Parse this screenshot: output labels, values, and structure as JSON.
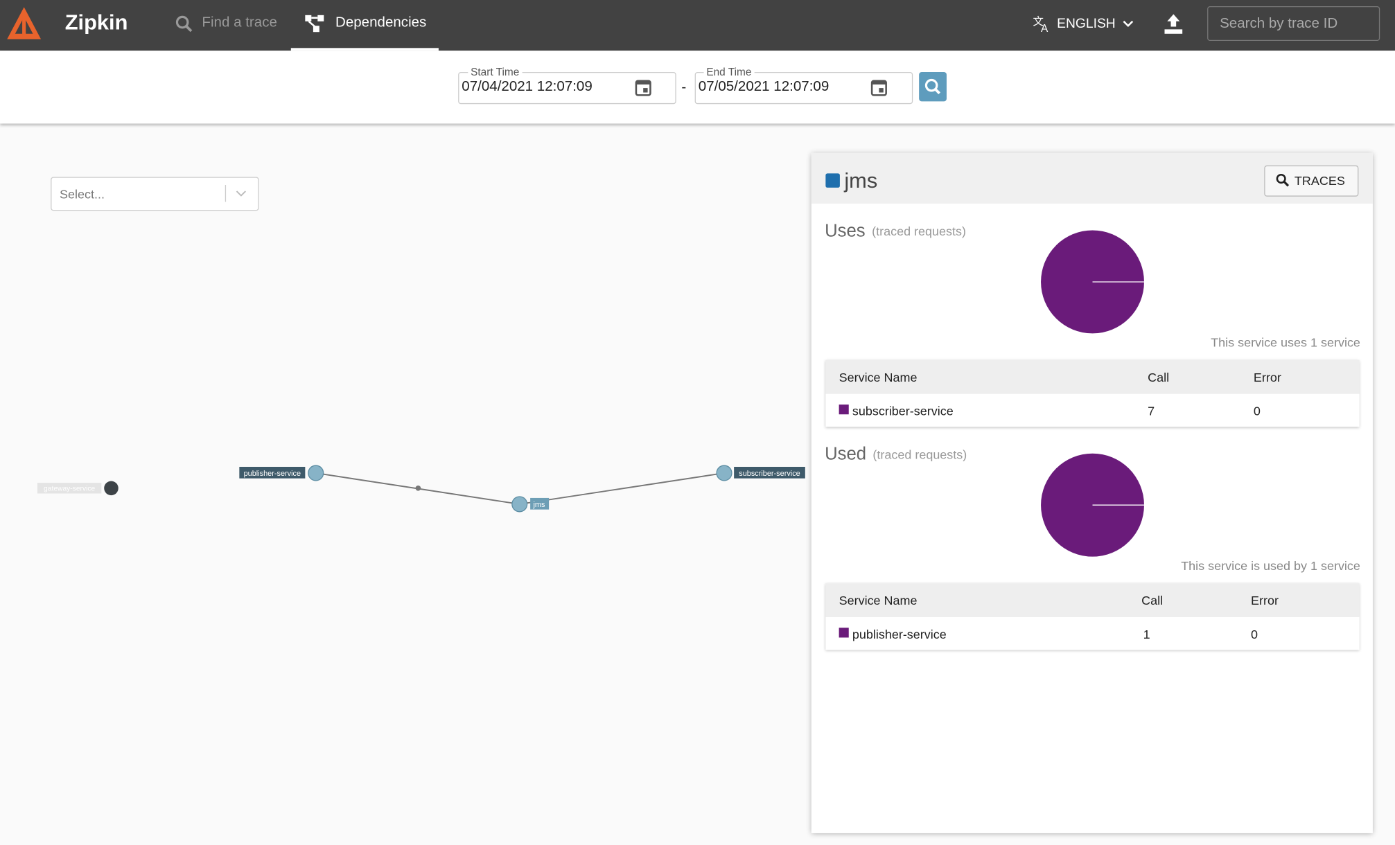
{
  "header": {
    "brand": "Zipkin",
    "nav": [
      "Find a trace",
      "Dependencies"
    ],
    "language": "ENGLISH",
    "search_placeholder": "Search by trace ID"
  },
  "filters": {
    "start_label": "Start Time",
    "start_value": "07/04/2021 12:07:09",
    "separator": "-",
    "end_label": "End Time",
    "end_value": "07/05/2021 12:07:09"
  },
  "graph": {
    "select_placeholder": "Select...",
    "nodes": [
      "gateway-service",
      "publisher-service",
      "jms",
      "subscriber-service"
    ]
  },
  "panel": {
    "service": "jms",
    "traces_button": "TRACES",
    "uses": {
      "title": "Uses",
      "subtitle": "(traced requests)",
      "summary": "This service uses 1 service",
      "columns": [
        "Service Name",
        "Call",
        "Error"
      ],
      "rows": [
        [
          "subscriber-service",
          7,
          0
        ]
      ]
    },
    "used": {
      "title": "Used",
      "subtitle": "(traced requests)",
      "summary": "This service is used by 1 service",
      "columns": [
        "Service Name",
        "Call",
        "Error"
      ],
      "rows": [
        [
          "publisher-service",
          1,
          0
        ]
      ]
    }
  }
}
